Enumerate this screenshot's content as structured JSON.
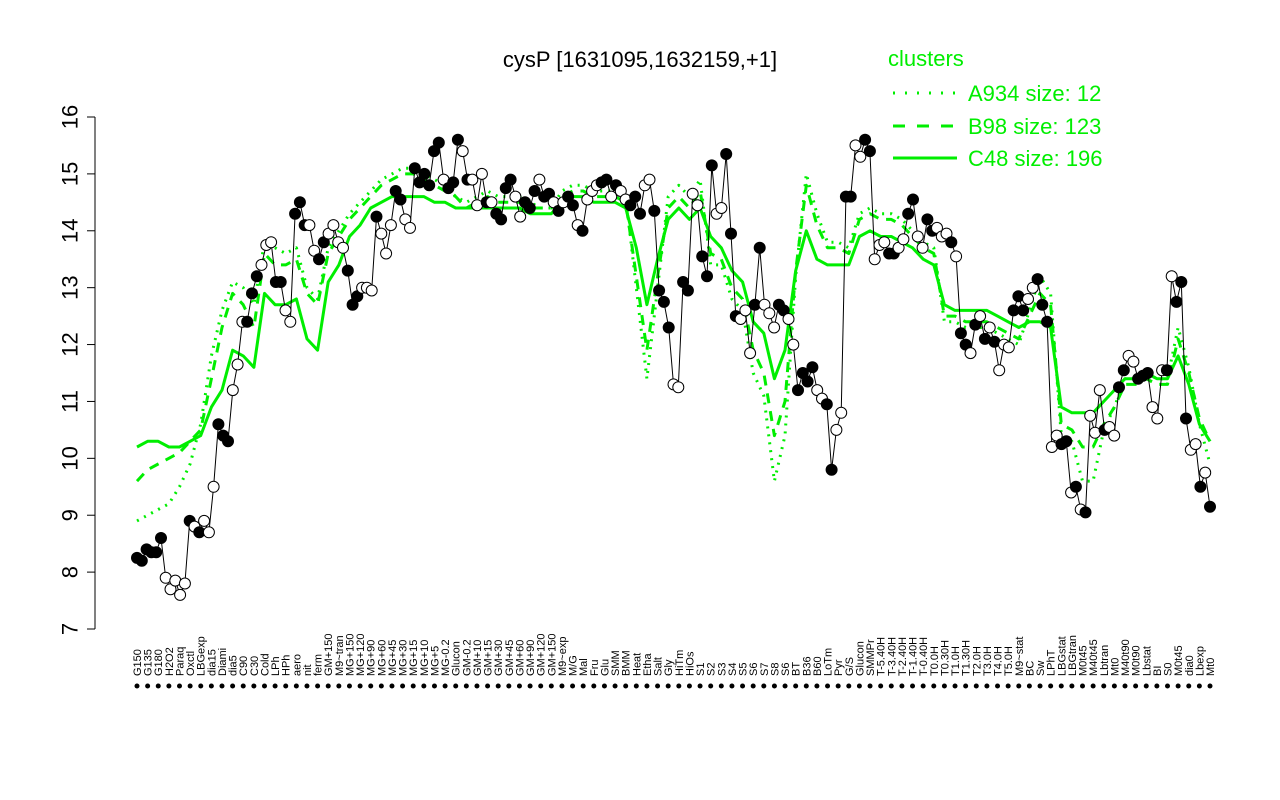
{
  "chart_data": {
    "type": "line",
    "title": "cysP [1631095,1632159,+1]",
    "xlabel": "",
    "ylabel": "",
    "ylim": [
      7,
      16
    ],
    "yticks": [
      7,
      8,
      9,
      10,
      11,
      12,
      13,
      14,
      15,
      16
    ],
    "colors": {
      "series": "#00ee00",
      "points_dark": "#000000",
      "points_light": "#ffffff",
      "legend_text": "#00ee00",
      "axis": "#000000"
    },
    "legend": {
      "title": "clusters",
      "placement": "top-right",
      "entries": [
        {
          "label": "A934 size: 12",
          "style": "dotted"
        },
        {
          "label": "B98 size: 123",
          "style": "dashed"
        },
        {
          "label": "C48 size: 196",
          "style": "solid"
        }
      ]
    },
    "xtick_labels": [
      "G150",
      "G135",
      "G180",
      "H2O2",
      "Paraq",
      "Oxctl",
      "LBGexp",
      "dia15",
      "Diami",
      "dia5",
      "C90",
      "C30",
      "Cold",
      "LPh",
      "HPh",
      "aero",
      "nit",
      "ferm",
      "GM+150",
      "M9~tran",
      "MG+150",
      "MG+120",
      "MG+90",
      "MG+60",
      "MG+45",
      "MG+30",
      "MG+15",
      "MG+10",
      "MG+5",
      "MG-0.2",
      "Glucon",
      "GM-0.2",
      "GM+10",
      "GM+15",
      "GM+30",
      "GM+45",
      "GM+60",
      "GM+90",
      "GM+120",
      "GM+150",
      "M9~exp",
      "M/G",
      "Mal",
      "Fru",
      "Glu",
      "SMM",
      "BMM",
      "Heat",
      "Etha",
      "Salt",
      "Gly",
      "HiTm",
      "HiOs",
      "S1",
      "S2",
      "S3",
      "S4",
      "S5",
      "S6",
      "S7",
      "S8",
      "S6",
      "BT",
      "B36",
      "B60",
      "LoTm",
      "Pyr",
      "G/S",
      "Glucon",
      "SMMPr",
      "T-5.40H",
      "T-3.40H",
      "T-2.40H",
      "T-1.40H",
      "T-0.40H",
      "T0.0H",
      "T0.30H",
      "T1.0H",
      "T1.30H",
      "T2.0H",
      "T3.0H",
      "T4.0H",
      "T5.0H",
      "M9~stat",
      "BC",
      "Sw",
      "LPhT",
      "LBGstat",
      "LBGtran",
      "M0t45",
      "M40t45",
      "Lbtran",
      "Mt0",
      "M40t90",
      "M0t90",
      "Lbstat",
      "BI",
      "S0",
      "M0t45",
      "dia0",
      "Lbexp",
      "Mt0"
    ],
    "series_lines": [
      {
        "name": "A934",
        "style": "dotted",
        "values": [
          8.9,
          9.0,
          9.1,
          9.2,
          9.5,
          9.9,
          10.6,
          11.8,
          12.6,
          13.1,
          13.0,
          12.7,
          13.8,
          13.7,
          13.6,
          13.7,
          13.0,
          12.8,
          13.7,
          14.0,
          14.3,
          14.5,
          14.7,
          14.9,
          15.0,
          15.1,
          15.1,
          15.0,
          14.9,
          14.8,
          14.6,
          14.5,
          14.6,
          14.7,
          14.6,
          14.6,
          14.6,
          14.5,
          14.4,
          14.4,
          14.7,
          14.8,
          14.8,
          14.7,
          14.7,
          14.7,
          14.6,
          13.0,
          11.4,
          13.0,
          14.6,
          14.8,
          14.6,
          14.9,
          13.4,
          13.4,
          12.8,
          12.6,
          11.5,
          11.1,
          9.6,
          10.4,
          13.2,
          15.0,
          14.3,
          13.8,
          13.8,
          13.7,
          14.3,
          14.4,
          14.3,
          14.3,
          14.2,
          14.0,
          13.8,
          13.7,
          12.4,
          12.4,
          12.3,
          12.3,
          12.3,
          12.2,
          12.1,
          12.0,
          12.6,
          13.2,
          12.9,
          10.4,
          10.3,
          9.6,
          9.6,
          10.5,
          10.9,
          11.4,
          11.4,
          11.5,
          11.4,
          11.4,
          12.3,
          11.6,
          10.6,
          9.9
        ]
      },
      {
        "name": "B98",
        "style": "dashed",
        "values": [
          9.6,
          9.8,
          9.9,
          10.0,
          10.1,
          10.3,
          10.5,
          11.4,
          12.3,
          12.9,
          12.7,
          12.3,
          13.6,
          13.4,
          13.4,
          13.5,
          12.9,
          12.7,
          13.6,
          13.9,
          14.2,
          14.4,
          14.6,
          14.8,
          14.9,
          15.0,
          15.0,
          14.9,
          14.8,
          14.7,
          14.6,
          14.4,
          14.5,
          14.6,
          14.5,
          14.5,
          14.5,
          14.4,
          14.4,
          14.4,
          14.6,
          14.7,
          14.7,
          14.6,
          14.6,
          14.6,
          14.5,
          13.2,
          11.9,
          13.2,
          14.4,
          14.6,
          14.4,
          14.7,
          13.6,
          13.5,
          13.0,
          12.8,
          11.9,
          11.5,
          10.4,
          11.0,
          13.3,
          14.8,
          14.1,
          13.7,
          13.7,
          13.6,
          14.2,
          14.3,
          14.2,
          14.2,
          14.1,
          13.9,
          13.7,
          13.6,
          12.5,
          12.5,
          12.4,
          12.4,
          12.4,
          12.3,
          12.2,
          12.1,
          12.5,
          12.9,
          12.7,
          10.6,
          10.5,
          10.2,
          10.2,
          10.6,
          10.9,
          11.3,
          11.3,
          11.4,
          11.3,
          11.3,
          12.1,
          11.5,
          10.7,
          10.3
        ]
      },
      {
        "name": "C48",
        "style": "solid",
        "values": [
          10.2,
          10.3,
          10.3,
          10.2,
          10.2,
          10.3,
          10.4,
          10.9,
          11.2,
          11.9,
          11.8,
          11.6,
          12.9,
          12.7,
          12.7,
          12.8,
          12.1,
          11.9,
          13.1,
          13.4,
          13.9,
          14.1,
          14.4,
          14.5,
          14.6,
          14.6,
          14.6,
          14.6,
          14.5,
          14.5,
          14.4,
          14.4,
          14.4,
          14.4,
          14.4,
          14.4,
          14.4,
          14.3,
          14.3,
          14.3,
          14.5,
          14.6,
          14.6,
          14.5,
          14.5,
          14.5,
          14.4,
          13.7,
          12.7,
          13.5,
          14.2,
          14.4,
          14.2,
          14.4,
          13.9,
          13.7,
          13.3,
          13.1,
          12.4,
          12.2,
          11.4,
          11.9,
          13.3,
          14.0,
          13.5,
          13.4,
          13.4,
          13.4,
          13.9,
          14.0,
          13.9,
          13.9,
          13.8,
          13.7,
          13.5,
          13.4,
          12.7,
          12.6,
          12.6,
          12.6,
          12.6,
          12.5,
          12.4,
          12.3,
          12.4,
          12.4,
          12.3,
          10.9,
          10.8,
          10.8,
          10.8,
          11.0,
          11.2,
          11.4,
          11.4,
          11.5,
          11.4,
          11.4,
          11.8,
          11.3,
          10.6,
          10.3
        ]
      }
    ],
    "points": [
      [
        8.25,
        true
      ],
      [
        8.2,
        true
      ],
      [
        8.4,
        true
      ],
      [
        8.35,
        true
      ],
      [
        8.35,
        true
      ],
      [
        8.6,
        true
      ],
      [
        7.9,
        false
      ],
      [
        7.7,
        false
      ],
      [
        7.85,
        false
      ],
      [
        7.6,
        false
      ],
      [
        7.8,
        false
      ],
      [
        8.9,
        true
      ],
      [
        8.8,
        false
      ],
      [
        8.7,
        true
      ],
      [
        8.9,
        false
      ],
      [
        8.7,
        false
      ],
      [
        9.5,
        false
      ],
      [
        10.6,
        true
      ],
      [
        10.4,
        true
      ],
      [
        10.3,
        true
      ],
      [
        11.2,
        false
      ],
      [
        11.65,
        false
      ],
      [
        12.4,
        false
      ],
      [
        12.4,
        true
      ],
      [
        12.9,
        true
      ],
      [
        13.2,
        true
      ],
      [
        13.4,
        false
      ],
      [
        13.75,
        false
      ],
      [
        13.8,
        false
      ],
      [
        13.1,
        true
      ],
      [
        13.1,
        true
      ],
      [
        12.6,
        false
      ],
      [
        12.4,
        false
      ],
      [
        14.3,
        true
      ],
      [
        14.5,
        true
      ],
      [
        14.1,
        true
      ],
      [
        14.1,
        false
      ],
      [
        13.65,
        false
      ],
      [
        13.5,
        true
      ],
      [
        13.8,
        true
      ],
      [
        13.95,
        false
      ],
      [
        14.1,
        false
      ],
      [
        13.8,
        false
      ],
      [
        13.7,
        false
      ],
      [
        13.3,
        true
      ],
      [
        12.7,
        true
      ],
      [
        12.85,
        true
      ],
      [
        13.0,
        false
      ],
      [
        13.0,
        false
      ],
      [
        12.95,
        false
      ],
      [
        14.25,
        true
      ],
      [
        13.95,
        false
      ],
      [
        13.6,
        false
      ],
      [
        14.1,
        false
      ],
      [
        14.7,
        true
      ],
      [
        14.55,
        true
      ],
      [
        14.2,
        false
      ],
      [
        14.05,
        false
      ],
      [
        15.1,
        true
      ],
      [
        14.85,
        true
      ],
      [
        15.0,
        true
      ],
      [
        14.8,
        true
      ],
      [
        15.4,
        true
      ],
      [
        15.55,
        true
      ],
      [
        14.9,
        false
      ],
      [
        14.75,
        true
      ],
      [
        14.85,
        true
      ],
      [
        15.6,
        true
      ],
      [
        15.4,
        false
      ],
      [
        14.9,
        true
      ],
      [
        14.9,
        false
      ],
      [
        14.45,
        false
      ],
      [
        15.0,
        false
      ],
      [
        14.5,
        true
      ],
      [
        14.5,
        false
      ],
      [
        14.3,
        true
      ],
      [
        14.2,
        true
      ],
      [
        14.75,
        true
      ],
      [
        14.9,
        true
      ],
      [
        14.6,
        false
      ],
      [
        14.25,
        false
      ],
      [
        14.5,
        true
      ],
      [
        14.4,
        true
      ],
      [
        14.7,
        true
      ],
      [
        14.9,
        false
      ],
      [
        14.6,
        true
      ],
      [
        14.65,
        true
      ],
      [
        14.5,
        false
      ],
      [
        14.35,
        true
      ],
      [
        14.5,
        false
      ],
      [
        14.6,
        true
      ],
      [
        14.45,
        true
      ],
      [
        14.1,
        false
      ],
      [
        14.0,
        true
      ],
      [
        14.55,
        false
      ],
      [
        14.7,
        false
      ],
      [
        14.8,
        false
      ],
      [
        14.85,
        true
      ],
      [
        14.9,
        true
      ],
      [
        14.6,
        false
      ],
      [
        14.8,
        true
      ],
      [
        14.7,
        false
      ],
      [
        14.55,
        false
      ],
      [
        14.45,
        true
      ],
      [
        14.6,
        true
      ],
      [
        14.3,
        true
      ],
      [
        14.8,
        false
      ],
      [
        14.9,
        false
      ],
      [
        14.35,
        true
      ],
      [
        12.95,
        true
      ],
      [
        12.75,
        true
      ],
      [
        12.3,
        true
      ],
      [
        11.3,
        false
      ],
      [
        11.25,
        false
      ],
      [
        13.1,
        true
      ],
      [
        12.95,
        true
      ],
      [
        14.65,
        false
      ],
      [
        14.45,
        false
      ],
      [
        13.55,
        true
      ],
      [
        13.2,
        true
      ],
      [
        15.15,
        true
      ],
      [
        14.3,
        false
      ],
      [
        14.4,
        false
      ],
      [
        15.35,
        true
      ],
      [
        13.95,
        true
      ],
      [
        12.5,
        true
      ],
      [
        12.45,
        false
      ],
      [
        12.6,
        false
      ],
      [
        11.85,
        false
      ],
      [
        12.7,
        true
      ],
      [
        13.7,
        true
      ],
      [
        12.7,
        false
      ],
      [
        12.55,
        false
      ],
      [
        12.3,
        false
      ],
      [
        12.7,
        true
      ],
      [
        12.6,
        true
      ],
      [
        12.45,
        false
      ],
      [
        12.0,
        false
      ],
      [
        11.2,
        true
      ],
      [
        11.5,
        true
      ],
      [
        11.35,
        true
      ],
      [
        11.6,
        true
      ],
      [
        11.2,
        false
      ],
      [
        11.05,
        false
      ],
      [
        10.95,
        true
      ],
      [
        9.8,
        true
      ],
      [
        10.5,
        false
      ],
      [
        10.8,
        false
      ],
      [
        14.6,
        true
      ],
      [
        14.6,
        true
      ],
      [
        15.5,
        false
      ],
      [
        15.3,
        false
      ],
      [
        15.6,
        true
      ],
      [
        15.4,
        true
      ],
      [
        13.5,
        false
      ],
      [
        13.75,
        false
      ],
      [
        13.8,
        false
      ],
      [
        13.6,
        true
      ],
      [
        13.6,
        true
      ],
      [
        13.7,
        false
      ],
      [
        13.85,
        false
      ],
      [
        14.3,
        true
      ],
      [
        14.55,
        true
      ],
      [
        13.9,
        false
      ],
      [
        13.7,
        false
      ],
      [
        14.2,
        true
      ],
      [
        14.0,
        true
      ],
      [
        14.05,
        false
      ],
      [
        13.9,
        false
      ],
      [
        13.95,
        false
      ],
      [
        13.8,
        true
      ],
      [
        13.55,
        false
      ],
      [
        12.2,
        true
      ],
      [
        12.0,
        true
      ],
      [
        11.85,
        false
      ],
      [
        12.35,
        true
      ],
      [
        12.5,
        false
      ],
      [
        12.1,
        true
      ],
      [
        12.3,
        false
      ],
      [
        12.05,
        true
      ],
      [
        11.55,
        false
      ],
      [
        12.0,
        false
      ],
      [
        11.95,
        false
      ],
      [
        12.6,
        true
      ],
      [
        12.85,
        true
      ],
      [
        12.6,
        true
      ],
      [
        12.8,
        false
      ],
      [
        13.0,
        false
      ],
      [
        13.15,
        true
      ],
      [
        12.7,
        true
      ],
      [
        12.4,
        true
      ],
      [
        10.2,
        false
      ],
      [
        10.4,
        false
      ],
      [
        10.25,
        true
      ],
      [
        10.3,
        true
      ],
      [
        9.4,
        false
      ],
      [
        9.5,
        true
      ],
      [
        9.1,
        false
      ],
      [
        9.05,
        true
      ],
      [
        10.75,
        false
      ],
      [
        10.45,
        false
      ],
      [
        11.2,
        false
      ],
      [
        10.5,
        true
      ],
      [
        10.55,
        false
      ],
      [
        10.4,
        false
      ],
      [
        11.25,
        true
      ],
      [
        11.55,
        true
      ],
      [
        11.8,
        false
      ],
      [
        11.7,
        false
      ],
      [
        11.4,
        true
      ],
      [
        11.45,
        true
      ],
      [
        11.5,
        true
      ],
      [
        10.9,
        false
      ],
      [
        10.7,
        false
      ],
      [
        11.55,
        false
      ],
      [
        11.55,
        true
      ],
      [
        13.2,
        false
      ],
      [
        12.75,
        true
      ],
      [
        13.1,
        true
      ],
      [
        10.7,
        true
      ],
      [
        10.15,
        false
      ],
      [
        10.25,
        false
      ],
      [
        9.5,
        true
      ],
      [
        9.75,
        false
      ],
      [
        9.15,
        true
      ]
    ]
  }
}
